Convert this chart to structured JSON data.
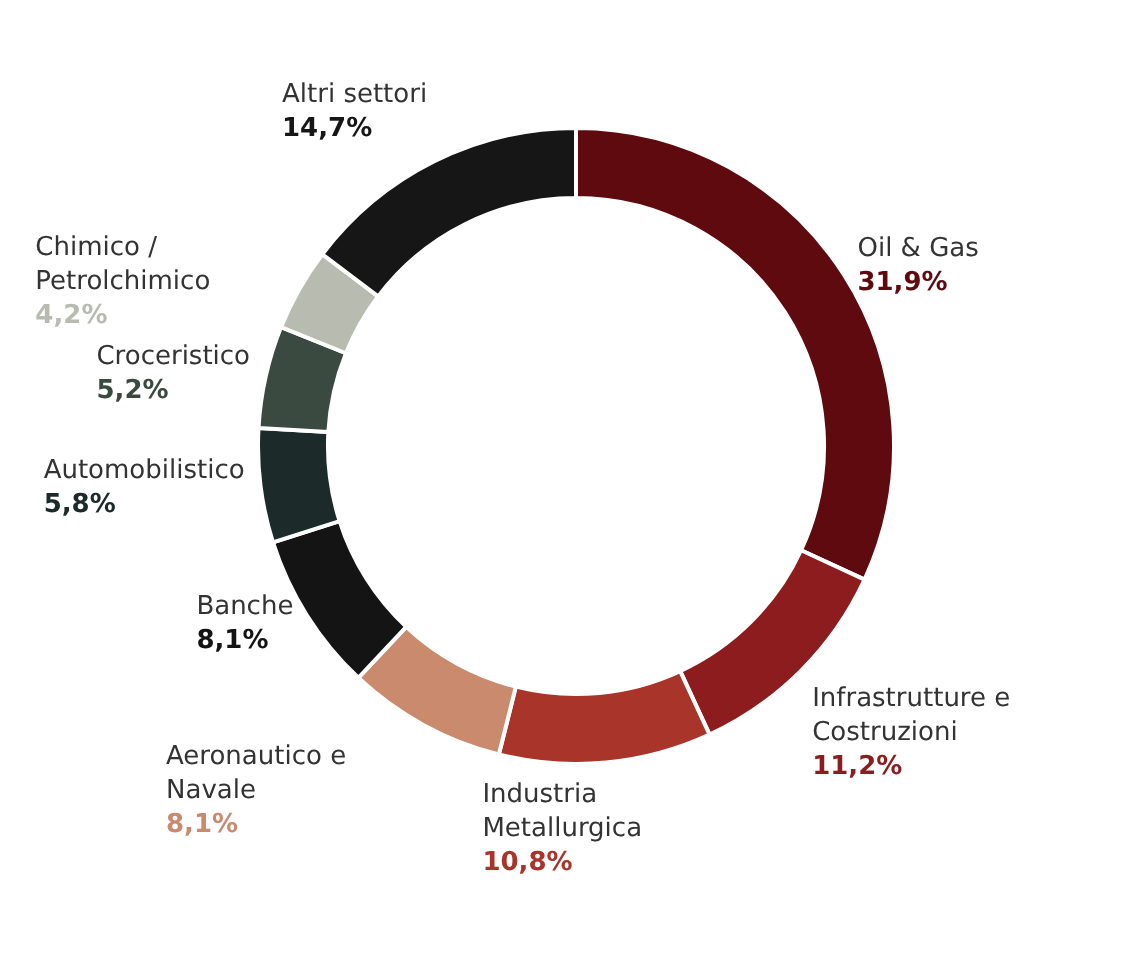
{
  "chart_data": {
    "type": "donut",
    "categories": [
      "Oil & Gas",
      "Infrastrutture e Costruzioni",
      "Industria Metallurgica",
      "Aeronautico e Navale",
      "Banche",
      "Automobilistico",
      "Croceristico",
      "Chimico / Petrolchimico",
      "Altri settori"
    ],
    "values": [
      31.9,
      11.2,
      10.8,
      8.1,
      8.1,
      5.8,
      5.2,
      4.2,
      14.7
    ],
    "colors": [
      "#5e0a0e",
      "#8c1c1e",
      "#a8342a",
      "#c98a6e",
      "#141414",
      "#1c2a2a",
      "#3a4a40",
      "#b8bcb0",
      "#161616"
    ],
    "value_labels": [
      "31,9%",
      "11,2%",
      "10,8%",
      "8,1%",
      "8,1%",
      "5,8%",
      "5,2%",
      "4,2%",
      "14,7%"
    ]
  }
}
